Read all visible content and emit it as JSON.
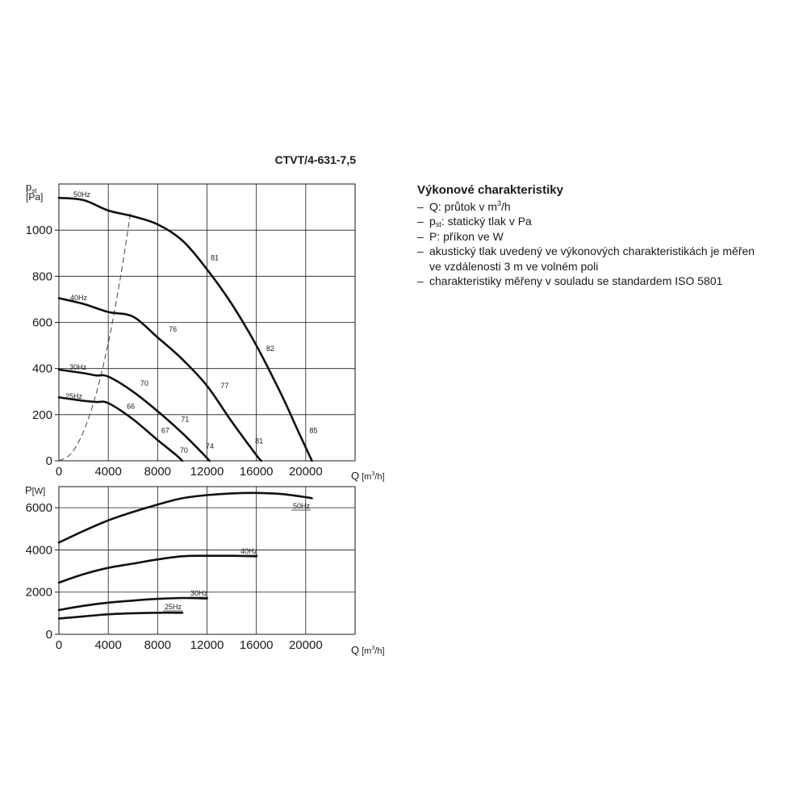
{
  "chart_data": [
    {
      "type": "line",
      "title": "CTVT/4-631-7,5",
      "ylabel_main": "p",
      "ylabel_sub": "st",
      "ylabel_unit": "[Pa]",
      "xlabel_main": "Q",
      "xlabel_unit_open": "[m",
      "xlabel_unit_sup": "3",
      "xlabel_unit_close": "/h]",
      "xlim": [
        0,
        24000
      ],
      "ylim": [
        0,
        1200
      ],
      "x_ticks": [
        "0",
        "4000",
        "8000",
        "12000",
        "16000",
        "20000"
      ],
      "y_ticks": [
        "0",
        "200",
        "400",
        "600",
        "800",
        "1000"
      ],
      "grid": true,
      "series": [
        {
          "name": "50Hz",
          "x": [
            0,
            2000,
            4000,
            6000,
            8000,
            10000,
            12000,
            14000,
            16000,
            18000,
            19500,
            20500
          ],
          "y": [
            1140,
            1130,
            1085,
            1060,
            1025,
            955,
            830,
            680,
            500,
            290,
            115,
            0
          ]
        },
        {
          "name": "40Hz",
          "x": [
            0,
            2000,
            4000,
            6000,
            8000,
            10000,
            12000,
            14000,
            16000,
            16400
          ],
          "y": [
            705,
            680,
            645,
            625,
            535,
            440,
            325,
            170,
            25,
            0
          ]
        },
        {
          "name": "30Hz",
          "x": [
            0,
            2000,
            3000,
            4000,
            6000,
            8000,
            10000,
            11500,
            12200
          ],
          "y": [
            395,
            380,
            370,
            365,
            300,
            215,
            120,
            40,
            0
          ]
        },
        {
          "name": "25Hz",
          "x": [
            0,
            2000,
            3000,
            4000,
            6000,
            8000,
            9500,
            10000
          ],
          "y": [
            275,
            260,
            255,
            250,
            180,
            90,
            25,
            0
          ]
        }
      ],
      "system_curve": {
        "x": [
          0,
          1000,
          2000,
          3000,
          4000,
          5000,
          5800
        ],
        "y": [
          0,
          32,
          128,
          288,
          512,
          800,
          1075
        ]
      },
      "annotations": [
        {
          "text": "81",
          "x": 12300,
          "y": 870
        },
        {
          "text": "82",
          "x": 16800,
          "y": 475
        },
        {
          "text": "85",
          "x": 20300,
          "y": 120
        },
        {
          "text": "76",
          "x": 8900,
          "y": 560
        },
        {
          "text": "77",
          "x": 13100,
          "y": 315
        },
        {
          "text": "81",
          "x": 15900,
          "y": 75
        },
        {
          "text": "70",
          "x": 6600,
          "y": 325
        },
        {
          "text": "71",
          "x": 9900,
          "y": 170
        },
        {
          "text": "74",
          "x": 11900,
          "y": 52
        },
        {
          "text": "66",
          "x": 5500,
          "y": 225
        },
        {
          "text": "67",
          "x": 8300,
          "y": 120
        },
        {
          "text": "70",
          "x": 9800,
          "y": 35
        }
      ]
    },
    {
      "type": "line",
      "ylabel_main": "P",
      "ylabel_unit": "[W]",
      "xlabel_main": "Q",
      "xlabel_unit_open": "[m",
      "xlabel_unit_sup": "3",
      "xlabel_unit_close": "/h]",
      "xlim": [
        0,
        24000
      ],
      "ylim": [
        0,
        7000
      ],
      "x_ticks": [
        "0",
        "4000",
        "8000",
        "12000",
        "16000",
        "20000"
      ],
      "y_ticks": [
        "0",
        "2000",
        "4000",
        "6000"
      ],
      "grid": true,
      "series": [
        {
          "name": "50Hz",
          "x": [
            0,
            2000,
            4000,
            6000,
            8000,
            10000,
            12000,
            14000,
            16000,
            18000,
            20000,
            20500
          ],
          "y": [
            4350,
            4900,
            5400,
            5800,
            6150,
            6450,
            6600,
            6680,
            6700,
            6650,
            6500,
            6450
          ]
        },
        {
          "name": "40Hz",
          "x": [
            0,
            2000,
            4000,
            6000,
            8000,
            10000,
            12000,
            14000,
            16000
          ],
          "y": [
            2450,
            2850,
            3150,
            3350,
            3550,
            3700,
            3720,
            3720,
            3700
          ]
        },
        {
          "name": "30Hz",
          "x": [
            0,
            2000,
            4000,
            6000,
            8000,
            10000,
            12000
          ],
          "y": [
            1150,
            1350,
            1500,
            1600,
            1680,
            1720,
            1700
          ]
        },
        {
          "name": "25Hz",
          "x": [
            0,
            2000,
            4000,
            6000,
            8000,
            10000
          ],
          "y": [
            750,
            850,
            950,
            1000,
            1020,
            1020
          ]
        }
      ]
    }
  ],
  "legend_text": {
    "title": "Výkonové charakteristiky",
    "dash": "–",
    "l1a": "Q: průtok v m",
    "l1sup": "3",
    "l1b": "/h",
    "l2a": "p",
    "l2sub": "st",
    "l2b": ": statický tlak v Pa",
    "l3": "P: příkon ve W",
    "l4a": "akustický tlak uvedený ve výkonových charakteristikách je měřen",
    "l4b": "ve vzdálenosti 3 m ve volném poli",
    "l5": "charakteristiky měřeny v souladu se standardem ISO 5801"
  }
}
